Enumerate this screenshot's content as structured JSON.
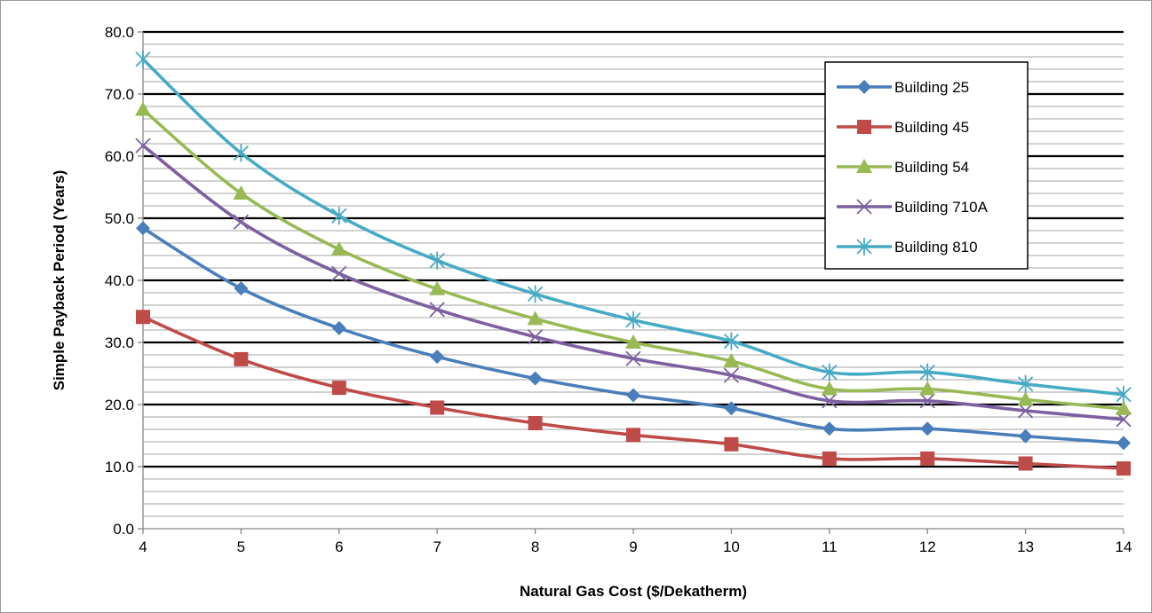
{
  "chart_data": {
    "type": "line",
    "title": "",
    "xlabel": "Natural Gas Cost ($/Dekatherm)",
    "ylabel": "Simple Payback Period (Years)",
    "x": [
      4,
      5,
      6,
      7,
      8,
      9,
      10,
      11,
      12,
      13,
      14
    ],
    "x_tick_labels": [
      "4",
      "5",
      "6",
      "7",
      "8",
      "9",
      "10",
      "11",
      "12",
      "13",
      "14"
    ],
    "ylim": [
      0,
      80
    ],
    "y_tick_labels": [
      "0.0",
      "10.0",
      "20.0",
      "30.0",
      "40.0",
      "50.0",
      "60.0",
      "70.0",
      "80.0"
    ],
    "grid": {
      "major_step": 10,
      "minor_step": 2
    },
    "smooth": true,
    "legend_position": "top-right",
    "series": [
      {
        "name": "Building 25",
        "color": "#4A7EBB",
        "marker": "diamond",
        "values": [
          48.4,
          38.7,
          32.3,
          27.7,
          24.2,
          21.5,
          19.4,
          16.1,
          16.1,
          14.9,
          13.8
        ]
      },
      {
        "name": "Building 45",
        "color": "#BE4B48",
        "marker": "square",
        "values": [
          34.1,
          27.3,
          22.7,
          19.5,
          17.0,
          15.1,
          13.6,
          11.3,
          11.3,
          10.5,
          9.7
        ]
      },
      {
        "name": "Building 54",
        "color": "#98B954",
        "marker": "triangle",
        "values": [
          67.5,
          54.0,
          45.0,
          38.6,
          33.8,
          30.0,
          27.0,
          22.5,
          22.5,
          20.8,
          19.3
        ]
      },
      {
        "name": "Building 710A",
        "color": "#7D60A0",
        "marker": "x",
        "values": [
          61.7,
          49.4,
          41.1,
          35.3,
          30.9,
          27.4,
          24.7,
          20.6,
          20.6,
          19.0,
          17.6
        ]
      },
      {
        "name": "Building 810",
        "color": "#46AAC5",
        "marker": "star",
        "values": [
          75.6,
          60.5,
          50.4,
          43.2,
          37.8,
          33.6,
          30.2,
          25.2,
          25.2,
          23.3,
          21.6
        ]
      }
    ]
  }
}
